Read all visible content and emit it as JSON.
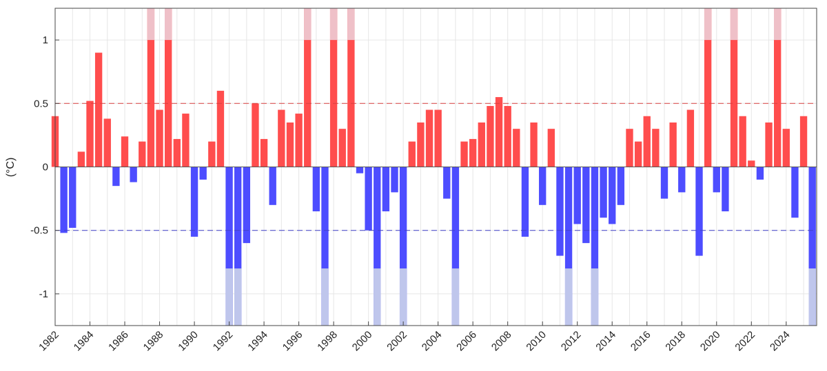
{
  "chart_data": {
    "type": "bar",
    "ylabel": "(°C)",
    "xlim": [
      1982.0,
      2025.75
    ],
    "ylim": [
      -1.25,
      1.25
    ],
    "xticks": [
      1982,
      1984,
      1986,
      1988,
      1990,
      1992,
      1994,
      1996,
      1998,
      2000,
      2002,
      2004,
      2006,
      2008,
      2010,
      2012,
      2014,
      2016,
      2018,
      2020,
      2022,
      2024
    ],
    "xtick_labels": [
      "1982",
      "1984",
      "1986",
      "1988",
      "1990",
      "1992",
      "1994",
      "1996",
      "1998",
      "2000",
      "2002",
      "2004",
      "2006",
      "2008",
      "2010",
      "2012",
      "2014",
      "2016",
      "2018",
      "2020",
      "2022",
      "2024"
    ],
    "yticks": [
      -1,
      -0.5,
      0,
      0.5,
      1
    ],
    "ytick_labels": [
      "-1",
      "-0.5",
      "0",
      "0.5",
      "1"
    ],
    "thresholds": [
      0.5,
      -0.5
    ],
    "grid": true,
    "colors": {
      "positive": "#ff4d4d",
      "negative": "#4d4dff",
      "positive_extreme": "#efc0c8",
      "negative_extreme": "#bfc6ec",
      "threshold_positive": "#d94040",
      "threshold_negative": "#4040c8"
    },
    "series": [
      {
        "x": [
          1982.0,
          1982.5,
          1983.0,
          1983.5,
          1984.0,
          1984.5,
          1985.0,
          1985.5,
          1986.0,
          1986.5,
          1987.0,
          1987.5,
          1988.0,
          1988.5,
          1989.0,
          1989.5,
          1990.0,
          1990.5,
          1991.0,
          1991.5,
          1992.0,
          1992.5,
          1993.0,
          1993.5,
          1994.0,
          1994.5,
          1995.0,
          1995.5,
          1996.0,
          1996.5,
          1997.0,
          1997.5,
          1998.0,
          1998.5,
          1999.0,
          1999.5,
          2000.0,
          2000.5,
          2001.0,
          2001.5,
          2002.0,
          2002.5,
          2003.0,
          2003.5,
          2004.0,
          2004.5,
          2005.0,
          2005.5,
          2006.0,
          2006.5,
          2007.0,
          2007.5,
          2008.0,
          2008.5,
          2009.0,
          2009.5,
          2010.0,
          2010.5,
          2011.0,
          2011.5,
          2012.0,
          2012.5,
          2013.0,
          2013.5,
          2014.0,
          2014.5,
          2015.0,
          2015.5,
          2016.0,
          2016.5,
          2017.0,
          2017.5,
          2018.0,
          2018.5,
          2019.0,
          2019.5,
          2020.0,
          2020.5,
          2021.0,
          2021.5,
          2022.0,
          2022.5,
          2023.0,
          2023.5,
          2024.0,
          2024.5,
          2025.0,
          2025.5
        ],
        "y": [
          0.4,
          -0.52,
          -0.48,
          0.12,
          0.52,
          0.9,
          0.38,
          -0.15,
          0.24,
          -0.12,
          0.2,
          1.25,
          0.45,
          1.25,
          0.22,
          0.42,
          -0.55,
          -0.1,
          0.2,
          0.6,
          -1.25,
          -1.25,
          -0.6,
          0.5,
          0.22,
          -0.3,
          0.45,
          0.35,
          0.42,
          1.25,
          -0.35,
          -1.25,
          1.25,
          0.3,
          1.25,
          -0.05,
          -0.5,
          -1.25,
          -0.35,
          -0.2,
          -1.25,
          0.2,
          0.35,
          0.45,
          0.45,
          -0.25,
          -1.25,
          0.2,
          0.22,
          0.35,
          0.48,
          0.55,
          0.48,
          0.3,
          -0.55,
          0.35,
          -0.3,
          0.3,
          -0.7,
          -1.25,
          -0.45,
          -0.6,
          -1.25,
          -0.4,
          -0.45,
          -0.3,
          0.3,
          0.2,
          0.4,
          0.3,
          -0.25,
          0.35,
          -0.2,
          0.45,
          -0.7,
          1.25,
          -0.2,
          -0.35,
          1.25,
          0.4,
          0.05,
          -0.1,
          0.35,
          1.25,
          0.3,
          -0.4,
          0.4,
          -1.25
        ]
      }
    ]
  }
}
